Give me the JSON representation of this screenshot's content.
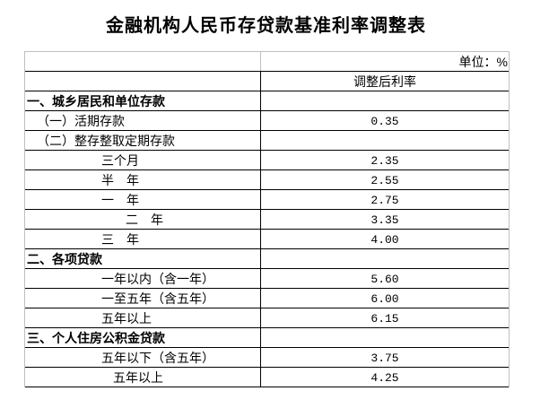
{
  "page": {
    "title": "金融机构人民币存贷款基准利率调整表"
  },
  "table": {
    "unit_label": "单位：%",
    "header": {
      "col2": "调整后利率"
    },
    "colors": {
      "border_dark": "#000000",
      "border_light": "#bfbfbf",
      "text": "#000000",
      "background": "#ffffff"
    },
    "rows": [
      {
        "label": "一、城乡居民和单位存款",
        "value": "",
        "indent": 0,
        "bold": true
      },
      {
        "label": "（一）活期存款",
        "value": "0.35",
        "indent": 1,
        "bold": false
      },
      {
        "label": "（二）整存整取定期存款",
        "value": "",
        "indent": 1,
        "bold": false
      },
      {
        "label": "三个月",
        "value": "2.35",
        "indent": 2,
        "bold": false
      },
      {
        "label": "半　年",
        "value": "2.55",
        "indent": 2,
        "bold": false
      },
      {
        "label": "一　年",
        "value": "2.75",
        "indent": 2,
        "bold": false
      },
      {
        "label": "二　年",
        "value": "3.35",
        "indent": 4,
        "bold": false
      },
      {
        "label": "三　年",
        "value": "4.00",
        "indent": 2,
        "bold": false
      },
      {
        "label": "二、各项贷款",
        "value": "",
        "indent": 0,
        "bold": true
      },
      {
        "label": "一年以内（含一年）",
        "value": "5.60",
        "indent": 2,
        "bold": false
      },
      {
        "label": "一至五年（含五年）",
        "value": "6.00",
        "indent": 2,
        "bold": false
      },
      {
        "label": "五年以上",
        "value": "6.15",
        "indent": 2,
        "bold": false
      },
      {
        "label": "三、个人住房公积金贷款",
        "value": "",
        "indent": 0,
        "bold": true
      },
      {
        "label": "五年以下（含五年）",
        "value": "3.75",
        "indent": 2,
        "bold": false
      },
      {
        "label": "五年以上",
        "value": "4.25",
        "indent": 3,
        "bold": false
      }
    ]
  }
}
